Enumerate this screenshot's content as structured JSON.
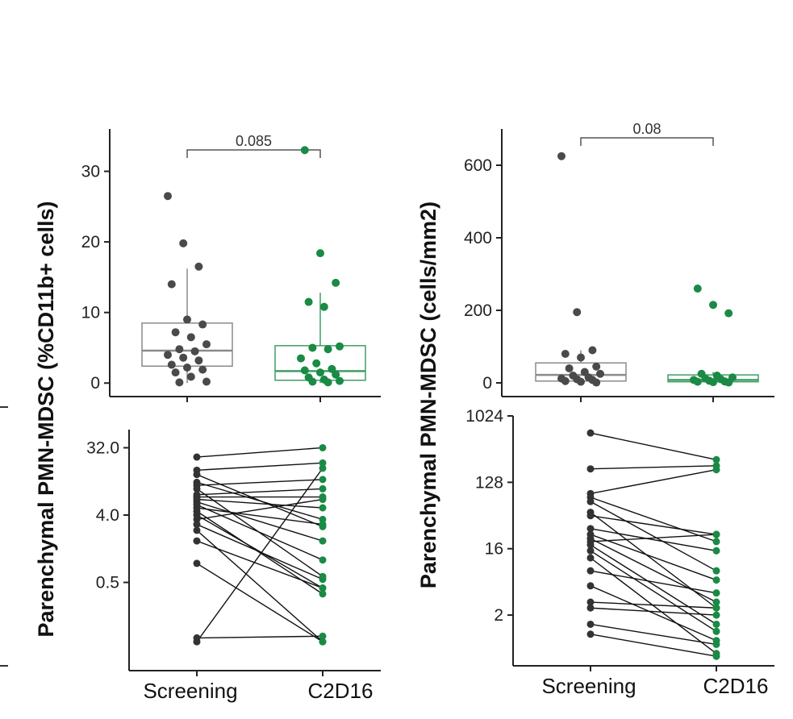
{
  "colors": {
    "screening": "#4a4a4a",
    "c2d16": "#1a8a45",
    "box_screening": "#8a8a8a",
    "box_c2d16": "#3f9e64",
    "axis": "#222222",
    "pair_line": "#111111"
  },
  "y_axis_labels": {
    "left": "Parenchymal PMN-MDSC (%CD11b+ cells)",
    "right": "Parenchymal PMN-MDSC (cells/mm2)"
  },
  "chart_data": [
    {
      "id": "left-top",
      "type": "box-strip",
      "title": "",
      "categories": [
        "Screening",
        "C2D16"
      ],
      "ylim": [
        -1,
        36
      ],
      "yticks": [
        0,
        10,
        20,
        30
      ],
      "ytick_labels": [
        "0",
        "10",
        "20",
        "30"
      ],
      "ylabel": "Parenchymal PMN-MDSC (%CD11b+ cells)",
      "pvalue": "0.085",
      "boxes": [
        {
          "q1": 2.4,
          "median": 4.6,
          "q3": 8.5,
          "whisker_low": 0,
          "whisker_high": 16.2
        },
        {
          "q1": 0.4,
          "median": 1.7,
          "q3": 5.3,
          "whisker_low": 0,
          "whisker_high": 12.8
        }
      ],
      "series": [
        {
          "name": "Screening",
          "values": [
            26.5,
            19.8,
            16.5,
            14.0,
            9.0,
            8.3,
            7.2,
            6.5,
            5.5,
            4.8,
            4.5,
            4.0,
            3.6,
            3.2,
            2.6,
            2.2,
            1.9,
            1.5,
            0.9,
            0.2,
            0.1
          ]
        },
        {
          "name": "C2D16",
          "values": [
            33.0,
            18.4,
            14.2,
            11.5,
            10.8,
            5.2,
            5.0,
            4.8,
            3.5,
            2.8,
            2.0,
            1.8,
            1.5,
            1.2,
            0.8,
            0.5,
            0.3,
            0.2,
            0.1
          ]
        }
      ]
    },
    {
      "id": "right-top",
      "type": "box-strip",
      "title": "",
      "categories": [
        "Screening",
        "C2D16"
      ],
      "ylim": [
        -20,
        700
      ],
      "yticks": [
        0,
        200,
        400,
        600
      ],
      "ytick_labels": [
        "0",
        "200",
        "400",
        "600"
      ],
      "ylabel": "Parenchymal PMN-MDSC (cells/mm2)",
      "pvalue": "0.08",
      "boxes": [
        {
          "q1": 5,
          "median": 22,
          "q3": 55,
          "whisker_low": 0,
          "whisker_high": 90
        },
        {
          "q1": 3,
          "median": 8,
          "q3": 22,
          "whisker_low": 0,
          "whisker_high": 30
        }
      ],
      "series": [
        {
          "name": "Screening",
          "values": [
            625,
            195,
            90,
            80,
            70,
            45,
            40,
            30,
            25,
            20,
            15,
            12,
            10,
            8,
            5,
            3,
            1
          ]
        },
        {
          "name": "C2D16",
          "values": [
            260,
            215,
            192,
            25,
            20,
            15,
            12,
            10,
            8,
            6,
            4,
            3,
            2,
            1
          ]
        }
      ]
    },
    {
      "id": "left-bottom",
      "type": "paired-line-log2",
      "categories": [
        "Screening",
        "C2D16"
      ],
      "ylim": [
        0.04,
        56
      ],
      "yticks": [
        0.5,
        4.0,
        32.0
      ],
      "ytick_labels": [
        "0.5",
        "4.0",
        "32.0"
      ],
      "pairs": [
        [
          24.0,
          32.0
        ],
        [
          16.0,
          20.0
        ],
        [
          14.0,
          2.8
        ],
        [
          11.0,
          3.5
        ],
        [
          10.0,
          12.0
        ],
        [
          9.0,
          0.6
        ],
        [
          7.5,
          9.0
        ],
        [
          7.0,
          7.0
        ],
        [
          6.5,
          5.0
        ],
        [
          6.0,
          1.8
        ],
        [
          5.5,
          1.0
        ],
        [
          5.0,
          3.0
        ],
        [
          4.5,
          0.35
        ],
        [
          4.0,
          0.42
        ],
        [
          3.5,
          6.5
        ],
        [
          3.0,
          0.55
        ],
        [
          2.5,
          0.08
        ],
        [
          1.8,
          0.42
        ],
        [
          0.9,
          0.08
        ],
        [
          0.09,
          0.095
        ],
        [
          0.08,
          17.0
        ]
      ]
    },
    {
      "id": "right-bottom",
      "type": "paired-line-log2",
      "categories": [
        "Screening",
        "C2D16"
      ],
      "ylim": [
        0.5,
        1024
      ],
      "yticks": [
        2,
        16,
        128,
        1024
      ],
      "ytick_labels": [
        "2",
        "16",
        "128",
        "1024"
      ],
      "pairs": [
        [
          600,
          260
        ],
        [
          195,
          215
        ],
        [
          90,
          190
        ],
        [
          80,
          20
        ],
        [
          70,
          8
        ],
        [
          50,
          2.5
        ],
        [
          45,
          25
        ],
        [
          30,
          15
        ],
        [
          25,
          6
        ],
        [
          22,
          3
        ],
        [
          20,
          25
        ],
        [
          18,
          1.5
        ],
        [
          15,
          1.2
        ],
        [
          12,
          0.6
        ],
        [
          8,
          4
        ],
        [
          5,
          0.9
        ],
        [
          3,
          2.5
        ],
        [
          2.5,
          2
        ],
        [
          1.5,
          0.8
        ],
        [
          1.1,
          0.55
        ]
      ]
    }
  ]
}
